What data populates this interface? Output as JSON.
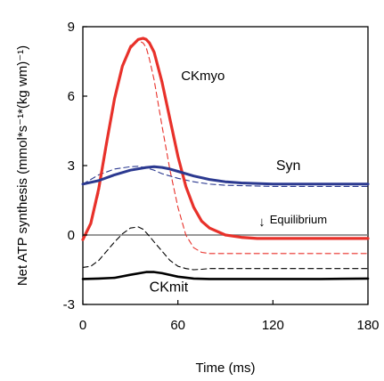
{
  "chart_data": {
    "type": "line",
    "xlabel": "Time (ms)",
    "ylabel": "Net ATP synthesis (mmol*s⁻¹*(kg wm)⁻¹)",
    "xlim": [
      0,
      180
    ],
    "ylim": [
      -3,
      9
    ],
    "xticks": [
      "0",
      "60",
      "120",
      "180"
    ],
    "yticks": [
      "-3",
      "0",
      "3",
      "6",
      "9"
    ],
    "grid": false,
    "annotations": [
      {
        "text": "CKmyo",
        "x": 62,
        "y": 6.7
      },
      {
        "text": "Syn",
        "x": 122,
        "y": 2.8
      },
      {
        "text": "Equilibrium",
        "x": 118,
        "y": 0.5,
        "arrow": "↓",
        "arrow_x": 113
      },
      {
        "text": "CKmit",
        "x": 42,
        "y": -2.45
      }
    ],
    "equilibrium_line": 0,
    "series": [
      {
        "color": "#e8312a",
        "style": "solid",
        "width": 3.2,
        "x": [
          0,
          5,
          10,
          15,
          20,
          25,
          30,
          35,
          38,
          40,
          42,
          45,
          50,
          55,
          60,
          65,
          70,
          75,
          80,
          90,
          100,
          110,
          120,
          140,
          160,
          180
        ],
        "y": [
          -0.2,
          0.5,
          2.0,
          4.0,
          5.9,
          7.3,
          8.1,
          8.45,
          8.5,
          8.45,
          8.3,
          7.9,
          6.6,
          5.0,
          3.4,
          2.1,
          1.2,
          0.6,
          0.3,
          0.0,
          -0.1,
          -0.15,
          -0.15,
          -0.15,
          -0.15,
          -0.15
        ]
      },
      {
        "color": "#e8312a",
        "style": "dashed",
        "width": 1.1,
        "x": [
          0,
          5,
          10,
          15,
          20,
          25,
          30,
          35,
          38,
          40,
          42,
          45,
          50,
          55,
          60,
          65,
          70,
          75,
          80,
          90,
          100,
          120,
          180
        ],
        "y": [
          -0.2,
          0.4,
          1.8,
          3.8,
          5.8,
          7.3,
          8.2,
          8.4,
          8.3,
          8.1,
          7.6,
          6.7,
          4.7,
          2.8,
          1.2,
          0.0,
          -0.55,
          -0.75,
          -0.8,
          -0.8,
          -0.8,
          -0.8,
          -0.8
        ]
      },
      {
        "color": "#2b3990",
        "style": "solid",
        "width": 3.0,
        "x": [
          0,
          10,
          20,
          30,
          40,
          45,
          50,
          55,
          60,
          70,
          80,
          90,
          100,
          120,
          150,
          180
        ],
        "y": [
          2.2,
          2.35,
          2.6,
          2.8,
          2.92,
          2.95,
          2.92,
          2.85,
          2.75,
          2.55,
          2.4,
          2.3,
          2.25,
          2.2,
          2.2,
          2.2
        ]
      },
      {
        "color": "#2b3990",
        "style": "dashed",
        "width": 1.1,
        "x": [
          0,
          10,
          20,
          30,
          35,
          40,
          45,
          50,
          60,
          70,
          80,
          90,
          120,
          180
        ],
        "y": [
          2.2,
          2.6,
          2.85,
          2.95,
          2.97,
          2.9,
          2.8,
          2.65,
          2.45,
          2.3,
          2.2,
          2.15,
          2.1,
          2.1
        ]
      },
      {
        "color": "#000000",
        "style": "solid",
        "width": 2.6,
        "x": [
          0,
          10,
          20,
          30,
          40,
          45,
          50,
          60,
          70,
          80,
          100,
          120,
          150,
          180
        ],
        "y": [
          -1.9,
          -1.88,
          -1.85,
          -1.72,
          -1.6,
          -1.6,
          -1.65,
          -1.8,
          -1.88,
          -1.9,
          -1.9,
          -1.9,
          -1.9,
          -1.88
        ]
      },
      {
        "color": "#000000",
        "style": "dashed",
        "width": 1.1,
        "x": [
          0,
          5,
          10,
          15,
          20,
          25,
          30,
          35,
          38,
          42,
          45,
          50,
          55,
          60,
          65,
          70,
          75,
          80,
          100,
          120,
          150,
          180
        ],
        "y": [
          -1.4,
          -1.35,
          -1.1,
          -0.7,
          -0.3,
          0.05,
          0.3,
          0.35,
          0.25,
          -0.05,
          -0.3,
          -0.7,
          -1.1,
          -1.35,
          -1.45,
          -1.5,
          -1.48,
          -1.45,
          -1.45,
          -1.45,
          -1.45,
          -1.45
        ]
      }
    ]
  }
}
